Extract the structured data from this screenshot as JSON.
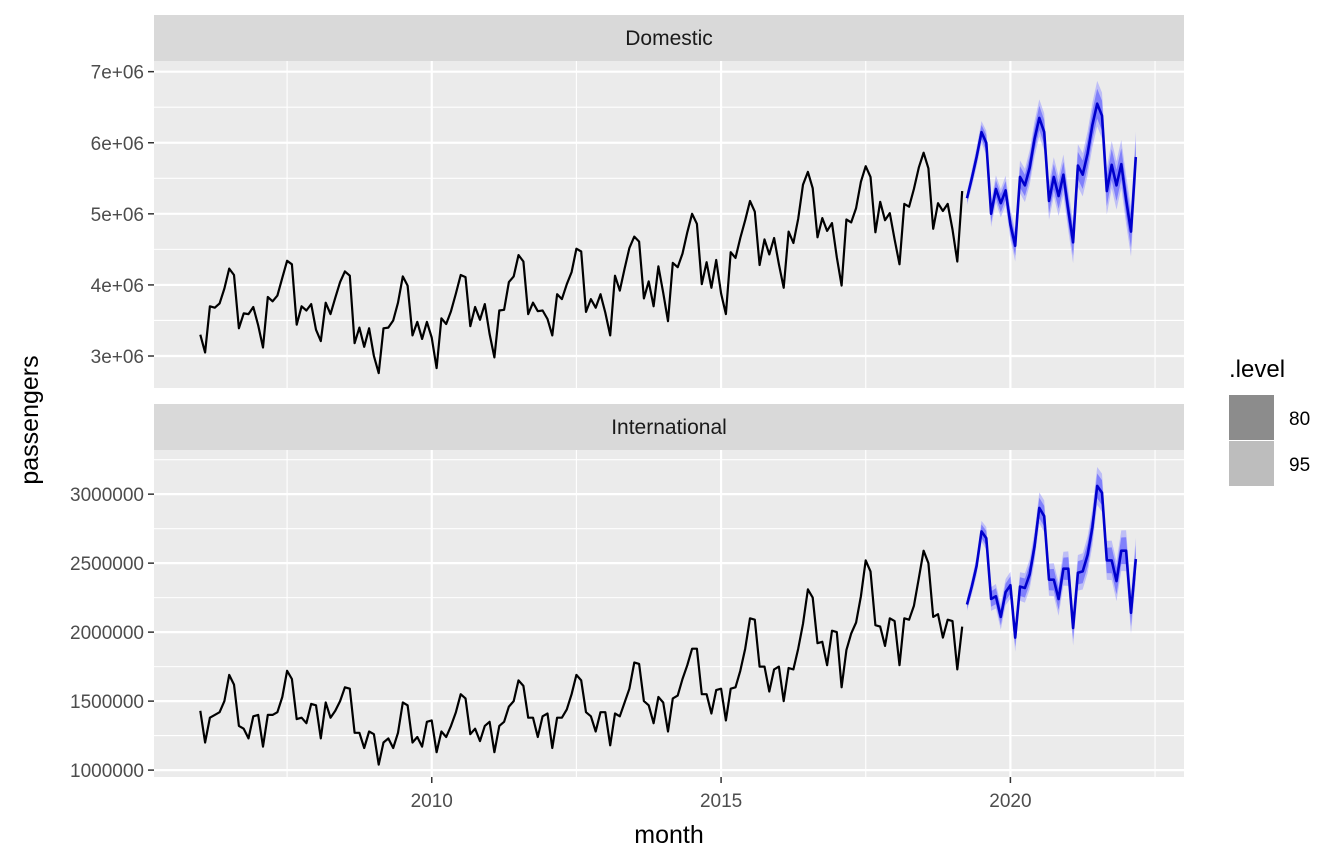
{
  "chart_data": {
    "type": "line",
    "xlabel": "month",
    "ylabel": "passengers",
    "xlim": [
      2005.2,
      2023.0
    ],
    "x_ticks": [
      2010,
      2015,
      2020
    ],
    "x_tick_labels": [
      "2010",
      "2015",
      "2020"
    ],
    "grid": true,
    "legend": {
      "title": ".level",
      "placement": "right",
      "entries": [
        {
          "label": "80",
          "color": "#8c8c8c"
        },
        {
          "label": "95",
          "color": "#bdbdbd"
        }
      ]
    },
    "colors": {
      "history": "#000000",
      "forecast": "#0000cc",
      "band80": "#4d4dff",
      "band95": "#9999ff",
      "panel_bg": "#ebebeb",
      "strip_bg": "#d9d9d9",
      "grid": "#ffffff"
    },
    "panels": [
      {
        "title": "Domestic",
        "ylim": [
          2550000,
          7150000
        ],
        "y_ticks": [
          3000000,
          4000000,
          5000000,
          6000000,
          7000000
        ],
        "y_tick_labels": [
          "3e+06",
          "4e+06",
          "5e+06",
          "6e+06",
          "7e+06"
        ],
        "history": {
          "start": 2006.0,
          "step": 0.08333,
          "values": [
            3300000,
            3050000,
            3700000,
            3680000,
            3740000,
            3950000,
            4230000,
            4140000,
            3390000,
            3600000,
            3590000,
            3690000,
            3430000,
            3120000,
            3830000,
            3770000,
            3850000,
            4100000,
            4340000,
            4290000,
            3440000,
            3700000,
            3640000,
            3730000,
            3370000,
            3210000,
            3750000,
            3590000,
            3820000,
            4040000,
            4190000,
            4130000,
            3180000,
            3400000,
            3130000,
            3390000,
            3000000,
            2760000,
            3390000,
            3400000,
            3500000,
            3750000,
            4120000,
            3990000,
            3290000,
            3480000,
            3240000,
            3480000,
            3260000,
            2830000,
            3530000,
            3450000,
            3630000,
            3880000,
            4140000,
            4110000,
            3420000,
            3690000,
            3510000,
            3730000,
            3310000,
            2980000,
            3640000,
            3650000,
            4040000,
            4120000,
            4420000,
            4330000,
            3590000,
            3750000,
            3630000,
            3640000,
            3520000,
            3290000,
            3870000,
            3800000,
            4010000,
            4180000,
            4510000,
            4470000,
            3620000,
            3800000,
            3680000,
            3870000,
            3610000,
            3290000,
            4130000,
            3920000,
            4230000,
            4520000,
            4680000,
            4610000,
            3810000,
            4050000,
            3700000,
            4260000,
            3890000,
            3490000,
            4310000,
            4250000,
            4440000,
            4740000,
            5000000,
            4860000,
            4010000,
            4320000,
            3960000,
            4350000,
            3880000,
            3590000,
            4460000,
            4380000,
            4660000,
            4910000,
            5180000,
            5030000,
            4280000,
            4640000,
            4430000,
            4660000,
            4290000,
            3960000,
            4750000,
            4590000,
            4930000,
            5410000,
            5590000,
            5360000,
            4670000,
            4940000,
            4760000,
            4870000,
            4390000,
            3990000,
            4920000,
            4880000,
            5080000,
            5450000,
            5670000,
            5520000,
            4740000,
            5170000,
            4910000,
            5010000,
            4640000,
            4290000,
            5140000,
            5100000,
            5350000,
            5650000,
            5860000,
            5640000,
            4790000,
            5150000,
            5040000,
            5140000,
            4780000,
            4330000,
            5320000
          ]
        },
        "forecast": {
          "start": 2019.25,
          "step": 0.08333,
          "values": [
            5220000,
            5500000,
            5800000,
            6150000,
            6000000,
            5000000,
            5350000,
            5150000,
            5330000,
            4850000,
            4550000,
            5520000,
            5400000,
            5650000,
            6050000,
            6350000,
            6150000,
            5180000,
            5520000,
            5250000,
            5550000,
            5050000,
            4600000,
            5680000,
            5550000,
            5850000,
            6250000,
            6550000,
            6380000,
            5320000,
            5690000,
            5400000,
            5700000,
            5200000,
            4750000,
            5800000
          ],
          "band80_halfwidth": [
            60000,
            80000,
            90000,
            100000,
            110000,
            120000,
            120000,
            130000,
            130000,
            140000,
            140000,
            150000,
            150000,
            160000,
            160000,
            170000,
            170000,
            170000,
            180000,
            180000,
            180000,
            190000,
            190000,
            190000,
            200000,
            200000,
            200000,
            210000,
            210000,
            210000,
            220000,
            220000,
            220000,
            220000,
            230000,
            230000
          ],
          "band95_halfwidth": [
            95000,
            125000,
            140000,
            155000,
            170000,
            185000,
            190000,
            200000,
            205000,
            215000,
            220000,
            230000,
            235000,
            245000,
            250000,
            260000,
            265000,
            265000,
            275000,
            280000,
            285000,
            290000,
            295000,
            300000,
            305000,
            310000,
            315000,
            320000,
            325000,
            330000,
            335000,
            340000,
            340000,
            345000,
            350000,
            355000
          ]
        }
      },
      {
        "title": "International",
        "ylim": [
          950000,
          3320000
        ],
        "y_ticks": [
          1000000,
          1500000,
          2000000,
          2500000,
          3000000
        ],
        "y_tick_labels": [
          "1000000",
          "1500000",
          "2000000",
          "2500000",
          "3000000"
        ],
        "history": {
          "start": 2006.0,
          "step": 0.08333,
          "values": [
            1430000,
            1200000,
            1380000,
            1400000,
            1420000,
            1500000,
            1690000,
            1620000,
            1320000,
            1300000,
            1230000,
            1390000,
            1400000,
            1170000,
            1400000,
            1400000,
            1420000,
            1530000,
            1720000,
            1660000,
            1370000,
            1380000,
            1340000,
            1480000,
            1470000,
            1230000,
            1490000,
            1380000,
            1430000,
            1500000,
            1600000,
            1590000,
            1270000,
            1270000,
            1160000,
            1280000,
            1260000,
            1040000,
            1200000,
            1230000,
            1160000,
            1270000,
            1490000,
            1470000,
            1200000,
            1240000,
            1170000,
            1350000,
            1360000,
            1130000,
            1280000,
            1240000,
            1320000,
            1420000,
            1550000,
            1520000,
            1260000,
            1300000,
            1210000,
            1320000,
            1350000,
            1130000,
            1320000,
            1350000,
            1460000,
            1500000,
            1650000,
            1610000,
            1380000,
            1380000,
            1240000,
            1390000,
            1410000,
            1160000,
            1380000,
            1380000,
            1440000,
            1550000,
            1690000,
            1650000,
            1420000,
            1390000,
            1280000,
            1420000,
            1420000,
            1180000,
            1410000,
            1390000,
            1490000,
            1590000,
            1780000,
            1770000,
            1500000,
            1470000,
            1340000,
            1530000,
            1490000,
            1280000,
            1520000,
            1540000,
            1660000,
            1760000,
            1880000,
            1880000,
            1550000,
            1550000,
            1410000,
            1580000,
            1590000,
            1360000,
            1590000,
            1600000,
            1720000,
            1880000,
            2100000,
            2090000,
            1750000,
            1750000,
            1570000,
            1730000,
            1750000,
            1500000,
            1740000,
            1730000,
            1880000,
            2060000,
            2310000,
            2250000,
            1920000,
            1930000,
            1760000,
            2010000,
            2000000,
            1600000,
            1870000,
            1990000,
            2070000,
            2260000,
            2520000,
            2440000,
            2050000,
            2040000,
            1900000,
            2100000,
            2080000,
            1760000,
            2100000,
            2090000,
            2190000,
            2390000,
            2590000,
            2500000,
            2110000,
            2130000,
            1960000,
            2090000,
            2080000,
            1730000,
            2040000
          ]
        },
        "forecast": {
          "start": 2019.25,
          "step": 0.08333,
          "values": [
            2200000,
            2330000,
            2480000,
            2730000,
            2680000,
            2240000,
            2260000,
            2110000,
            2290000,
            2340000,
            1960000,
            2330000,
            2320000,
            2420000,
            2620000,
            2900000,
            2840000,
            2380000,
            2380000,
            2240000,
            2460000,
            2460000,
            2030000,
            2430000,
            2440000,
            2560000,
            2760000,
            3060000,
            3010000,
            2520000,
            2520000,
            2370000,
            2590000,
            2590000,
            2140000,
            2530000
          ],
          "band80_halfwidth": [
            30000,
            38000,
            45000,
            50000,
            54000,
            56000,
            58000,
            60000,
            62000,
            64000,
            66000,
            68000,
            69000,
            70000,
            72000,
            74000,
            75000,
            76000,
            78000,
            79000,
            80000,
            82000,
            83000,
            84000,
            86000,
            87000,
            88000,
            90000,
            91000,
            92000,
            94000,
            95000,
            96000,
            97000,
            98000,
            100000
          ],
          "band95_halfwidth": [
            46000,
            58000,
            69000,
            76000,
            82000,
            86000,
            89000,
            92000,
            95000,
            98000,
            101000,
            104000,
            106000,
            108000,
            110000,
            113000,
            115000,
            117000,
            119000,
            121000,
            123000,
            125000,
            127000,
            129000,
            131000,
            133000,
            135000,
            137000,
            139000,
            141000,
            143000,
            145000,
            147000,
            149000,
            151000,
            153000
          ]
        }
      }
    ]
  }
}
